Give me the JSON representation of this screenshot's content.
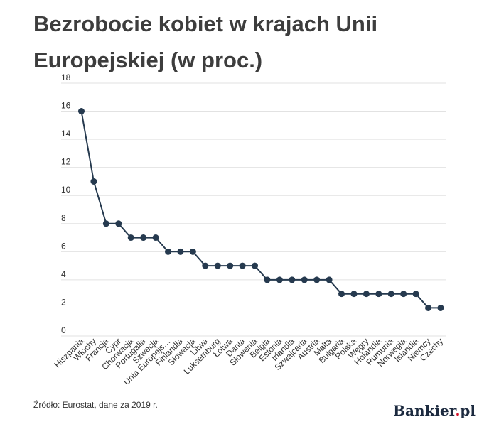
{
  "header": {
    "title": "Bezrobocie kobiet w krajach Unii Europejskiej (w proc.)"
  },
  "footer": {
    "source": "Źródło: Eurostat, dane za 2019 r.",
    "logo_name": "Bankier",
    "logo_dot": ".",
    "logo_tld": "pl"
  },
  "colors": {
    "line": "#263a4f",
    "grid": "#e2e2e2",
    "text": "#3d3d3d",
    "logo_dot": "#d4122a"
  },
  "chart_data": {
    "type": "line",
    "title": "Bezrobocie kobiet w krajach Unii Europejskiej (w proc.)",
    "xlabel": "",
    "ylabel": "",
    "ylim": [
      0,
      18
    ],
    "yticks": [
      0,
      2,
      4,
      6,
      8,
      10,
      12,
      14,
      16,
      18
    ],
    "grid": true,
    "categories": [
      "Hiszpania",
      "Włochy",
      "Francja",
      "Cypr",
      "Chorwacja",
      "Portugalia",
      "Szwecja",
      "Unia Europejs…",
      "Finlandia",
      "Słowacja",
      "Litwa",
      "Luksemburg",
      "Łotwa",
      "Dania",
      "Słowenia",
      "Belgia",
      "Estonia",
      "Irlandia",
      "Szwajcaria",
      "Austria",
      "Malta",
      "Bułgaria",
      "Polska",
      "Węgry",
      "Holandia",
      "Rumunia",
      "Norwegia",
      "Islandia",
      "Niemcy",
      "Czechy"
    ],
    "series": [
      {
        "values": [
          16,
          11,
          8,
          8,
          7,
          7,
          7,
          6,
          6,
          6,
          5,
          5,
          5,
          5,
          5,
          4,
          4,
          4,
          4,
          4,
          4,
          3,
          3,
          3,
          3,
          3,
          3,
          3,
          2,
          2
        ]
      }
    ]
  }
}
